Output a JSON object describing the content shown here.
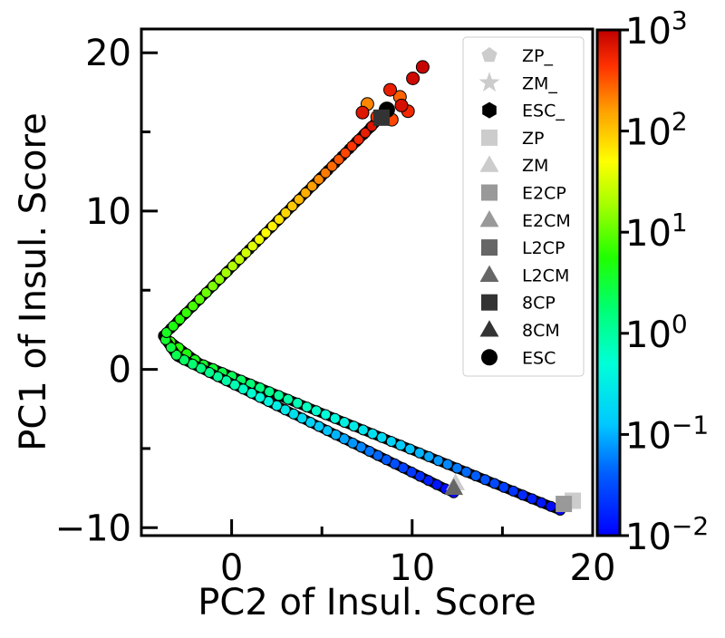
{
  "chart_data": {
    "type": "scatter",
    "xlabel": "PC2 of Insul. Score",
    "ylabel": "PC1 of Insul. Score",
    "xlim": [
      -5,
      20
    ],
    "ylim": [
      -10.5,
      21.5
    ],
    "xticks": [
      0,
      10,
      20
    ],
    "xtick_labels": [
      "0",
      "10",
      "20"
    ],
    "yticks": [
      -10,
      0,
      10,
      20
    ],
    "ytick_labels": [
      "−10",
      "0",
      "10",
      "20"
    ],
    "minor_xticks": [
      5,
      15
    ],
    "minor_yticks": [
      -5,
      5,
      15
    ],
    "colorbar": {
      "scale": "log",
      "colormap": "jet",
      "range": [
        0.01,
        1000
      ],
      "tick_base": "10",
      "tick_exponents": [
        "−2",
        "−1",
        "0",
        "1",
        "2",
        "3"
      ]
    },
    "legend": {
      "placement": "top-right",
      "entries": [
        {
          "label": "ZP_",
          "marker": "pentagon",
          "color": "#cccccc"
        },
        {
          "label": "ZM_",
          "marker": "star",
          "color": "#cccccc"
        },
        {
          "label": "ESC_",
          "marker": "hexagon",
          "color": "#000000"
        },
        {
          "label": "ZP",
          "marker": "square",
          "color": "#cccccc"
        },
        {
          "label": "ZM",
          "marker": "triangle",
          "color": "#cccccc"
        },
        {
          "label": "E2CP",
          "marker": "square",
          "color": "#999999"
        },
        {
          "label": "E2CM",
          "marker": "triangle",
          "color": "#999999"
        },
        {
          "label": "L2CP",
          "marker": "square",
          "color": "#666666"
        },
        {
          "label": "L2CM",
          "marker": "triangle",
          "color": "#666666"
        },
        {
          "label": "8CP",
          "marker": "square",
          "color": "#333333"
        },
        {
          "label": "8CM",
          "marker": "triangle",
          "color": "#333333"
        },
        {
          "label": "ESC",
          "marker": "circle",
          "color": "#000000"
        }
      ]
    },
    "trajectories": [
      {
        "from": "ZP_",
        "start": [
          18.8,
          -8.3
        ],
        "knots": [
          [
            18.2,
            -8.9
          ],
          [
            -1.8,
            0.4
          ],
          [
            -3.8,
            2.1
          ],
          [
            8.5,
            16.2
          ]
        ],
        "t_range": [
          0.01,
          1000
        ],
        "dots": 75
      },
      {
        "from": "ZM_",
        "start": [
          12.4,
          -7.4
        ],
        "knots": [
          [
            12.3,
            -7.8
          ],
          [
            -3.0,
            0.8
          ],
          [
            -3.8,
            2.1
          ],
          [
            8.5,
            16.2
          ]
        ],
        "t_range": [
          0.01,
          1000
        ],
        "dots": 70
      }
    ],
    "annotations": [
      {
        "label": "ZP",
        "x": 18.9,
        "y": -8.3
      },
      {
        "label": "E2CP",
        "x": 18.4,
        "y": -8.5
      },
      {
        "label": "ZM",
        "x": 12.4,
        "y": -7.2
      },
      {
        "label": "L2CM",
        "x": 12.3,
        "y": -7.5
      },
      {
        "label": "ESC",
        "x": 8.6,
        "y": 16.4
      },
      {
        "label": "8CP",
        "x": 8.3,
        "y": 15.9
      }
    ]
  }
}
